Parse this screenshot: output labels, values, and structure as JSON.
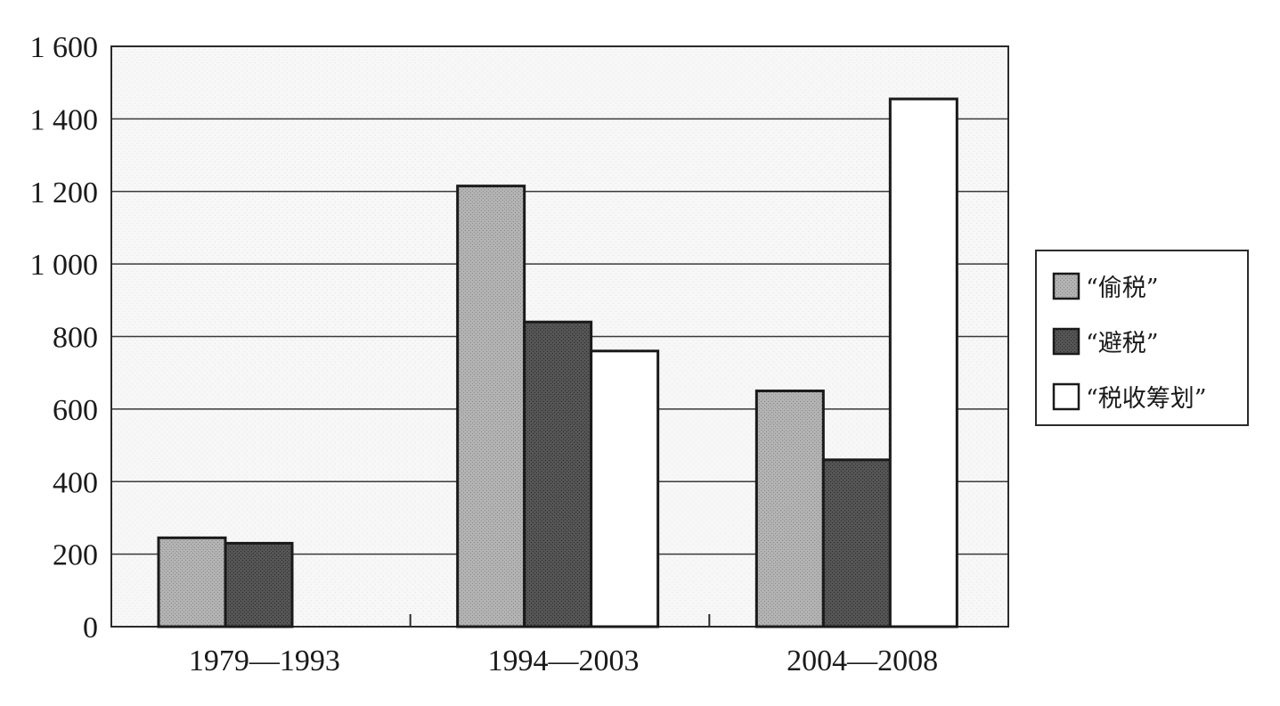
{
  "chart_data": {
    "type": "bar",
    "title": "",
    "xlabel": "",
    "ylabel": "",
    "categories": [
      "1979—1993",
      "1994—2003",
      "2004—2008"
    ],
    "series": [
      {
        "name": "“偷税”",
        "values": [
          245,
          1215,
          650
        ],
        "color": "#a6a6a6"
      },
      {
        "name": "“避税”",
        "values": [
          230,
          840,
          460
        ],
        "color": "#4a4a4a"
      },
      {
        "name": "“税收筹划”",
        "values": [
          null,
          760,
          1455
        ],
        "color": "#ffffff"
      }
    ],
    "ylim": [
      0,
      1600
    ],
    "yticks": [
      0,
      200,
      400,
      600,
      800,
      1000,
      1200,
      1400,
      1600
    ],
    "ytick_labels": [
      "0",
      "200",
      "400",
      "600",
      "800",
      "1 000",
      "1 200",
      "1 400",
      "1 600"
    ],
    "grid": true,
    "legend_position": "right"
  }
}
